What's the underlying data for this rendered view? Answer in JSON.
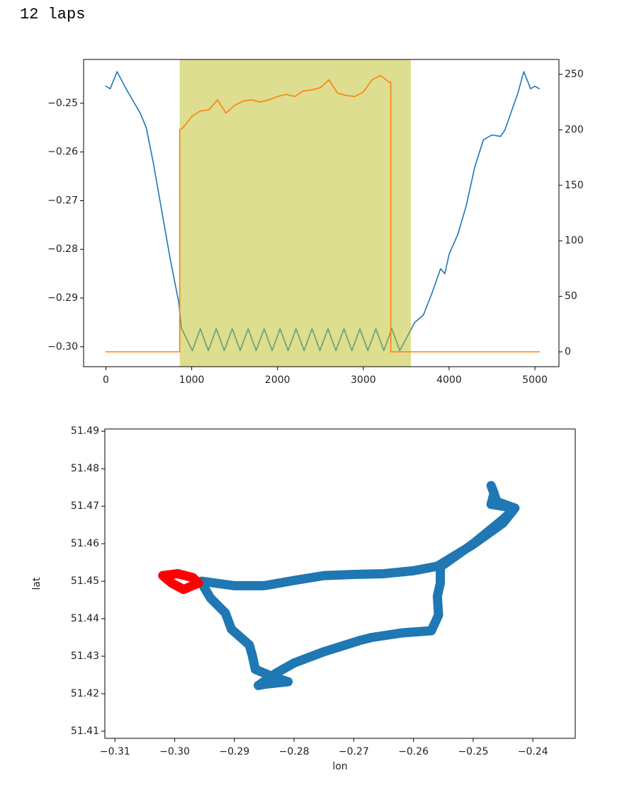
{
  "output_text": "12 laps",
  "chart_data": [
    {
      "type": "line",
      "xlim": [
        -260,
        5280
      ],
      "xticks": [
        0,
        1000,
        2000,
        3000,
        4000,
        5000
      ],
      "ylim": [
        -0.3041,
        -0.241
      ],
      "yticks": [
        {
          "value": -0.25,
          "label": "−0.25"
        },
        {
          "value": -0.26,
          "label": "−0.26"
        },
        {
          "value": -0.27,
          "label": "−0.27"
        },
        {
          "value": -0.28,
          "label": "−0.28"
        },
        {
          "value": -0.29,
          "label": "−0.29"
        },
        {
          "value": -0.3,
          "label": "−0.30"
        }
      ],
      "y2lim": [
        -13.4,
        263.4
      ],
      "y2ticks": [
        0,
        50,
        100,
        150,
        200,
        250
      ],
      "span": [
        860,
        3554
      ],
      "span_color": "#bcbd22",
      "series": [
        {
          "color": "#1f77b4",
          "x": [
            0,
            50,
            130,
            250,
            300,
            400,
            470,
            550,
            650,
            750,
            850,
            880,
            1007,
            1100,
            1193,
            1286,
            1379,
            1472,
            1565,
            1658,
            1751,
            1844,
            1937,
            2030,
            2123,
            2216,
            2309,
            2402,
            2495,
            2588,
            2681,
            2774,
            2867,
            2960,
            3053,
            3146,
            3239,
            3332,
            3425,
            3554,
            3600,
            3700,
            3800,
            3900,
            3950,
            4000,
            4100,
            4200,
            4300,
            4400,
            4500,
            4600,
            4650,
            4700,
            4800,
            4870,
            4950,
            5000,
            5050
          ],
          "values": [
            -0.2465,
            -0.247,
            -0.2435,
            -0.2475,
            -0.249,
            -0.252,
            -0.255,
            -0.262,
            -0.272,
            -0.282,
            -0.291,
            -0.2962,
            -0.3008,
            -0.2963,
            -0.3008,
            -0.2963,
            -0.3008,
            -0.2963,
            -0.3008,
            -0.2963,
            -0.3008,
            -0.2963,
            -0.3008,
            -0.2963,
            -0.3008,
            -0.2963,
            -0.3008,
            -0.2963,
            -0.3008,
            -0.2963,
            -0.3008,
            -0.2963,
            -0.3008,
            -0.2963,
            -0.3008,
            -0.2963,
            -0.3008,
            -0.2963,
            -0.3008,
            -0.2965,
            -0.295,
            -0.2935,
            -0.289,
            -0.284,
            -0.285,
            -0.281,
            -0.277,
            -0.271,
            -0.263,
            -0.2575,
            -0.2565,
            -0.2568,
            -0.2555,
            -0.253,
            -0.248,
            -0.2435,
            -0.247,
            -0.2465,
            -0.247
          ]
        },
        {
          "color": "#ff7f0e",
          "axis": "y2",
          "x": [
            0,
            860,
            860,
            900,
            1000,
            1100,
            1200,
            1300,
            1400,
            1500,
            1600,
            1700,
            1800,
            1900,
            2000,
            2100,
            2200,
            2300,
            2400,
            2500,
            2600,
            2700,
            2800,
            2900,
            3000,
            3100,
            3200,
            3300,
            3320,
            3320,
            5050
          ],
          "values": [
            0,
            0,
            200,
            202,
            212,
            217,
            218,
            227,
            215,
            222,
            226,
            227,
            225,
            227,
            230,
            232,
            230,
            235,
            236,
            238,
            245,
            233,
            231,
            230,
            234,
            245,
            249,
            243,
            243,
            0,
            0
          ]
        }
      ]
    },
    {
      "type": "scatter",
      "xlabel": "lon",
      "ylabel": "lat",
      "xlim": [
        -0.3117,
        -0.2329
      ],
      "xticks": [
        {
          "value": -0.31,
          "label": "−0.31"
        },
        {
          "value": -0.3,
          "label": "−0.30"
        },
        {
          "value": -0.29,
          "label": "−0.29"
        },
        {
          "value": -0.28,
          "label": "−0.28"
        },
        {
          "value": -0.27,
          "label": "−0.27"
        },
        {
          "value": -0.26,
          "label": "−0.26"
        },
        {
          "value": -0.25,
          "label": "−0.25"
        },
        {
          "value": -0.24,
          "label": "−0.24"
        }
      ],
      "ylim": [
        51.4081,
        51.4906
      ],
      "yticks": [
        51.41,
        51.42,
        51.43,
        51.44,
        51.45,
        51.46,
        51.47,
        51.48,
        51.49
      ],
      "series": [
        {
          "color": "#1f77b4",
          "x": [
            -0.2955,
            -0.29,
            -0.285,
            -0.28,
            -0.275,
            -0.27,
            -0.265,
            -0.26,
            -0.256,
            -0.25,
            -0.245,
            -0.243,
            -0.246,
            -0.247,
            -0.2465,
            -0.247,
            -0.243,
            -0.245,
            -0.25,
            -0.2555,
            -0.2555,
            -0.256,
            -0.2558,
            -0.257,
            -0.262,
            -0.267,
            -0.269,
            -0.275,
            -0.28,
            -0.283,
            -0.286,
            -0.285,
            -0.281,
            -0.2835,
            -0.2865,
            -0.287,
            -0.2875,
            -0.2905,
            -0.2915,
            -0.294,
            -0.2955
          ],
          "values": [
            51.45,
            51.4488,
            51.4488,
            51.4502,
            51.4515,
            51.4518,
            51.452,
            51.4528,
            51.454,
            51.4598,
            51.4655,
            51.4695,
            51.4712,
            51.4755,
            51.4735,
            51.4705,
            51.4695,
            51.4665,
            51.46,
            51.4538,
            51.4495,
            51.446,
            51.441,
            51.4368,
            51.4362,
            51.435,
            51.4342,
            51.4312,
            51.4282,
            51.4255,
            51.4222,
            51.4225,
            51.4232,
            51.4245,
            51.4265,
            51.4302,
            51.433,
            51.4372,
            51.4415,
            51.4455,
            51.4495
          ]
        },
        {
          "color": "#ff0000",
          "x": [
            -0.302,
            -0.2995,
            -0.297,
            -0.296,
            -0.2985,
            -0.3005,
            -0.302
          ],
          "values": [
            51.4515,
            51.452,
            51.451,
            51.4495,
            51.4478,
            51.4495,
            51.4515
          ]
        }
      ]
    }
  ]
}
